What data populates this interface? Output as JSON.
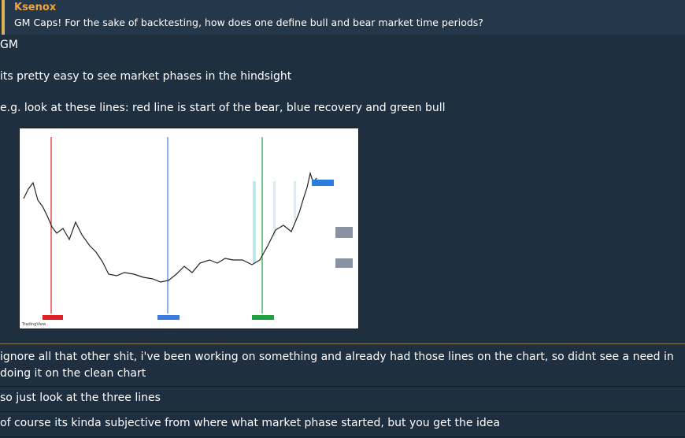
{
  "quote": {
    "author": "Ksenox",
    "text": "GM Caps! For the sake of backtesting, how does one define bull and bear market time periods?"
  },
  "messages": [
    "GM",
    "its pretty easy to see market phases in the hindsight",
    "e.g. look at these lines: red line is start of the bear, blue recovery and green bull",
    "ignore all that other shit, i've been working on something and already had those lines on the chart, so didnt see a need in doing it on the clean chart",
    "so just look at the three lines",
    "of course its kinda subjective from where what market phase started, but you get the idea"
  ],
  "image": {
    "brand": "TradingView"
  }
}
